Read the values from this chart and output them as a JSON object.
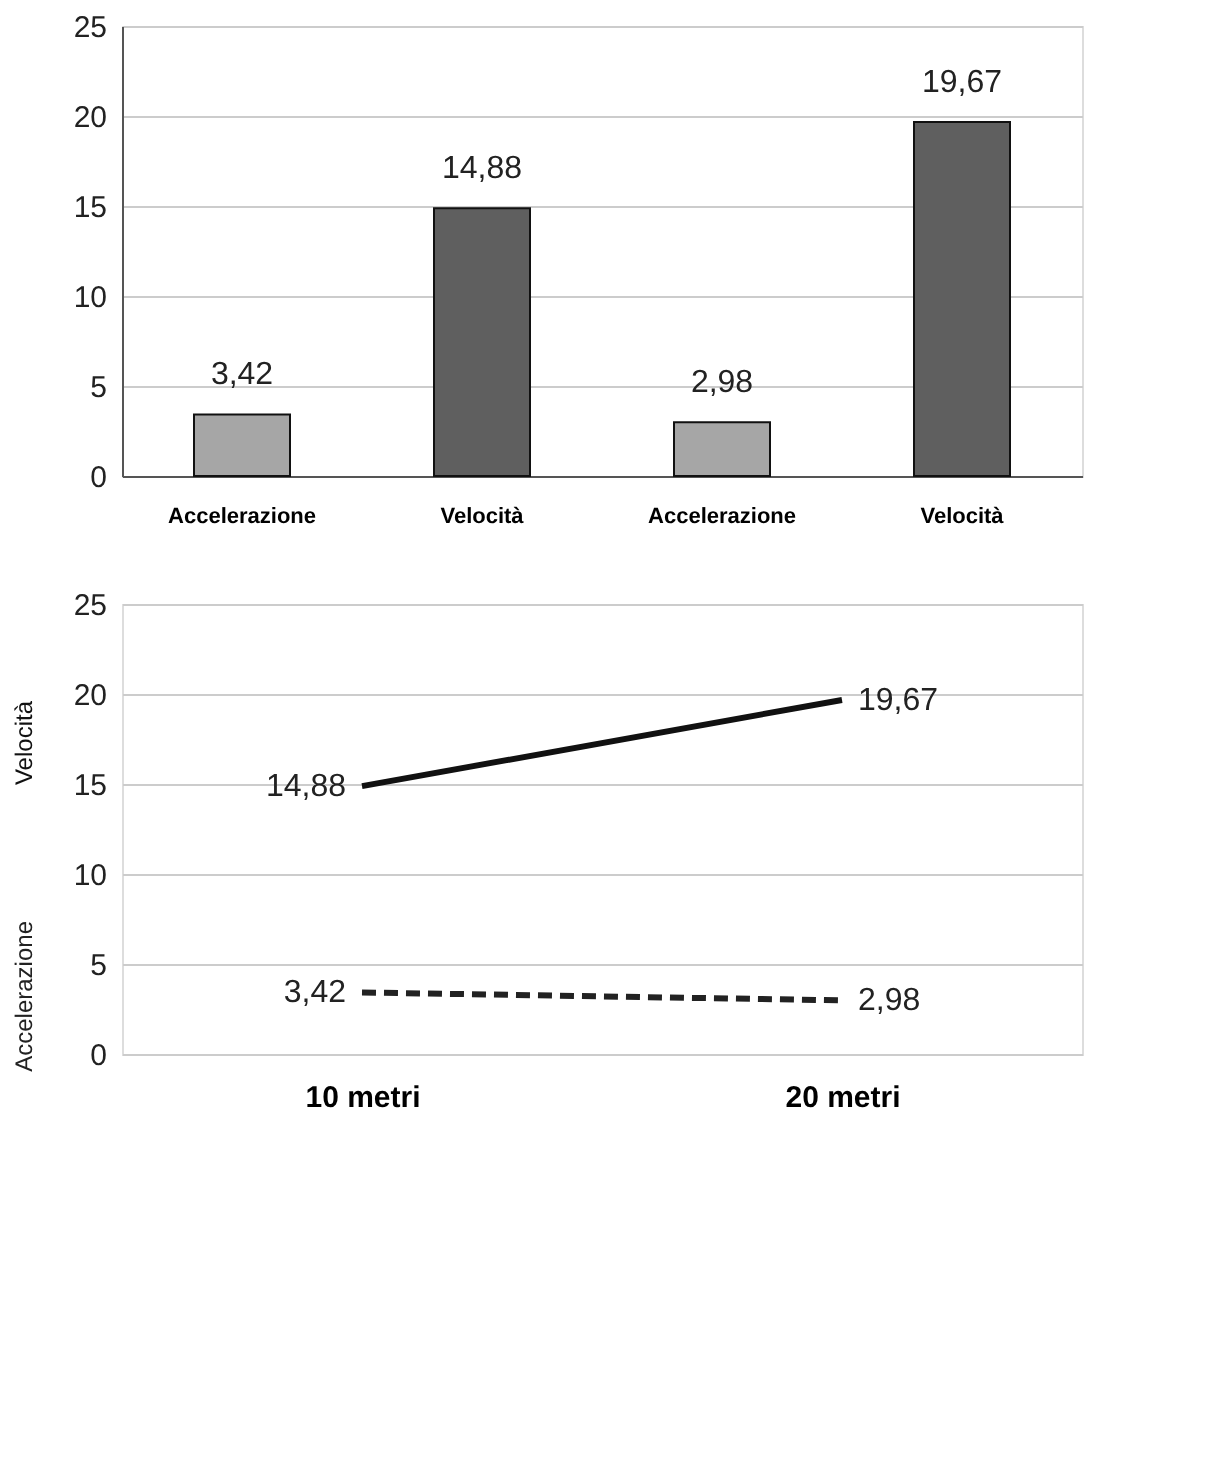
{
  "chart_data": [
    {
      "type": "bar",
      "categories": [
        "Accelerazione",
        "Velocità",
        "Accelerazione",
        "Velocità"
      ],
      "values": [
        3.42,
        14.88,
        2.98,
        19.67
      ],
      "colors": [
        "#a6a6a6",
        "#5f5f5f",
        "#a6a6a6",
        "#5f5f5f"
      ],
      "value_labels": [
        "3,42",
        "14,88",
        "2,98",
        "19,67"
      ],
      "ylim": [
        0,
        25
      ],
      "yticks": [
        0,
        5,
        10,
        15,
        20,
        25
      ],
      "grid": "y"
    },
    {
      "type": "line",
      "categories": [
        "10 metri",
        "20  metri"
      ],
      "series": [
        {
          "name": "Velocità",
          "color": "#111111",
          "values": [
            14.88,
            19.67
          ],
          "value_labels": [
            "14,88",
            "19,67"
          ],
          "line_style": "solid"
        },
        {
          "name": "Accelerazione",
          "color": "#222222",
          "values": [
            3.42,
            2.98
          ],
          "value_labels": [
            "3,42",
            "2,98"
          ],
          "line_style": "dashed"
        }
      ],
      "ylim": [
        0,
        25
      ],
      "yticks": [
        0,
        5,
        10,
        15,
        20,
        25
      ],
      "grid": "y"
    }
  ]
}
